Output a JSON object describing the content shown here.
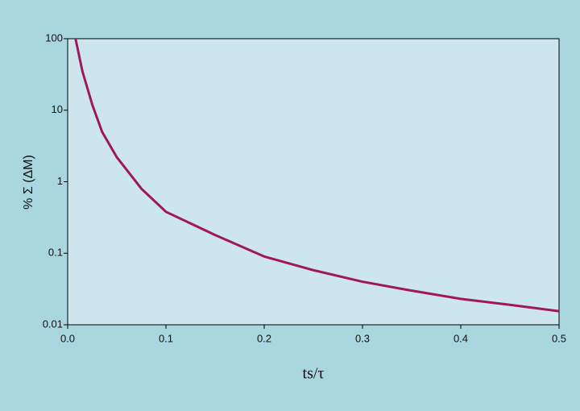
{
  "chart_data": {
    "type": "line",
    "y_scale": "log",
    "y_label": "% Σ (ΔM)",
    "x_label": "ts/τ",
    "x": [
      0.008,
      0.015,
      0.025,
      0.035,
      0.05,
      0.075,
      0.1,
      0.15,
      0.2,
      0.25,
      0.3,
      0.35,
      0.4,
      0.45,
      0.5
    ],
    "series": [
      {
        "color": "#a0185a",
        "values": [
          100,
          35,
          12,
          5,
          2.2,
          0.8,
          0.38,
          0.18,
          0.09,
          0.058,
          0.04,
          0.03,
          0.023,
          0.019,
          0.0155
        ]
      }
    ],
    "xlim": [
      0,
      0.5
    ],
    "ylim": [
      0.01,
      100
    ],
    "xticks": [
      {
        "value": 0,
        "label": "0.0"
      },
      0.1,
      0.2,
      0.3,
      0.4,
      0.5
    ],
    "yticks": [
      0.01,
      0.1,
      1,
      10,
      100
    ]
  }
}
